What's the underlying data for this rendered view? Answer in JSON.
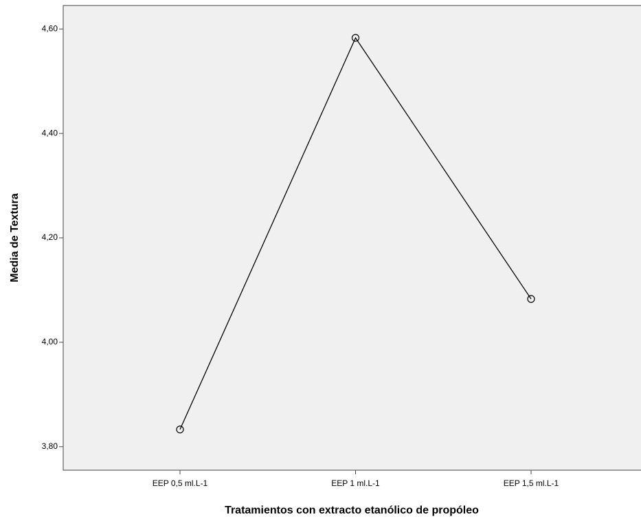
{
  "chart_data": {
    "type": "line",
    "x_label": "Tratamientos con extracto etanólico de propóleo",
    "y_label": "Media de Textura",
    "categories": [
      "EEP 0,5 ml.L-1",
      "EEP 1 ml.L-1",
      "EEP 1,5 ml.L-1"
    ],
    "values": [
      3.833,
      4.583,
      4.083
    ],
    "color": "#000000",
    "ylim": [
      3.755,
      4.645
    ],
    "yticks": [
      {
        "value": 3.8,
        "label": "3,80"
      },
      {
        "value": 4.0,
        "label": "4,00"
      },
      {
        "value": 4.2,
        "label": "4,20"
      },
      {
        "value": 4.4,
        "label": "4,40"
      },
      {
        "value": 4.6,
        "label": "4,60"
      }
    ],
    "grid": false
  }
}
